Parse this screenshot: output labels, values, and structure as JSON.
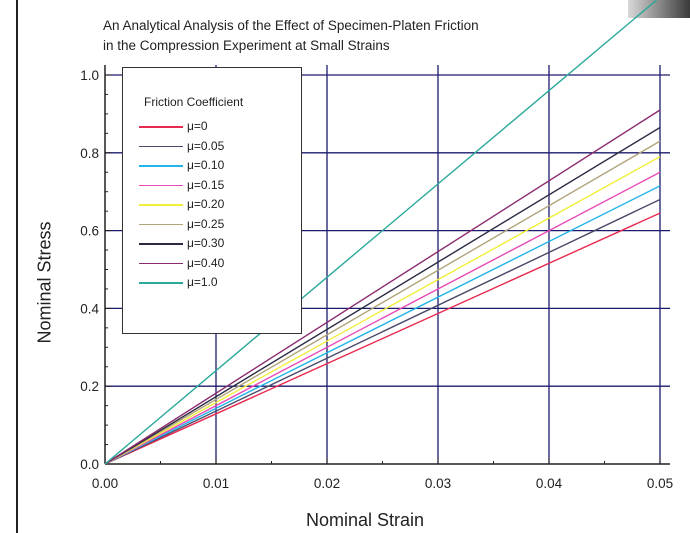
{
  "chart_data": {
    "type": "line",
    "title": "An Analytical Analysis of the Effect of Specimen-Platen Friction",
    "subtitle": "in the Compression Experiment at Small Strains",
    "xlabel": "Nominal Strain",
    "ylabel": "Nominal Stress",
    "xlim": [
      0,
      0.05
    ],
    "ylim": [
      0,
      1.0
    ],
    "xticks": [
      "0.00",
      "0.01",
      "0.02",
      "0.03",
      "0.04",
      "0.05"
    ],
    "yticks": [
      "0.0",
      "0.2",
      "0.4",
      "0.6",
      "0.8",
      "1.0"
    ],
    "grid": true,
    "legend_title": "Friction Coefficient",
    "legend_position": "top-left",
    "x": [
      0,
      0.05
    ],
    "series": [
      {
        "name": "μ=0",
        "color": "#e8294f",
        "values": [
          0,
          0.645
        ]
      },
      {
        "name": "μ=0.05",
        "color": "#4a4a6a",
        "values": [
          0,
          0.68
        ]
      },
      {
        "name": "μ=0.10",
        "color": "#22b5e8",
        "values": [
          0,
          0.715
        ]
      },
      {
        "name": "μ=0.15",
        "color": "#e84ab8",
        "values": [
          0,
          0.75
        ]
      },
      {
        "name": "μ=0.20",
        "color": "#f2ee3a",
        "values": [
          0,
          0.79
        ]
      },
      {
        "name": "μ=0.25",
        "color": "#b0a47a",
        "values": [
          0,
          0.83
        ]
      },
      {
        "name": "μ=0.30",
        "color": "#2a2a44",
        "values": [
          0,
          0.865
        ]
      },
      {
        "name": "μ=0.40",
        "color": "#8a2a6e",
        "values": [
          0,
          0.91
        ]
      },
      {
        "name": "μ=1.0",
        "color": "#2aa89a",
        "values": [
          0,
          1.2
        ]
      }
    ]
  }
}
